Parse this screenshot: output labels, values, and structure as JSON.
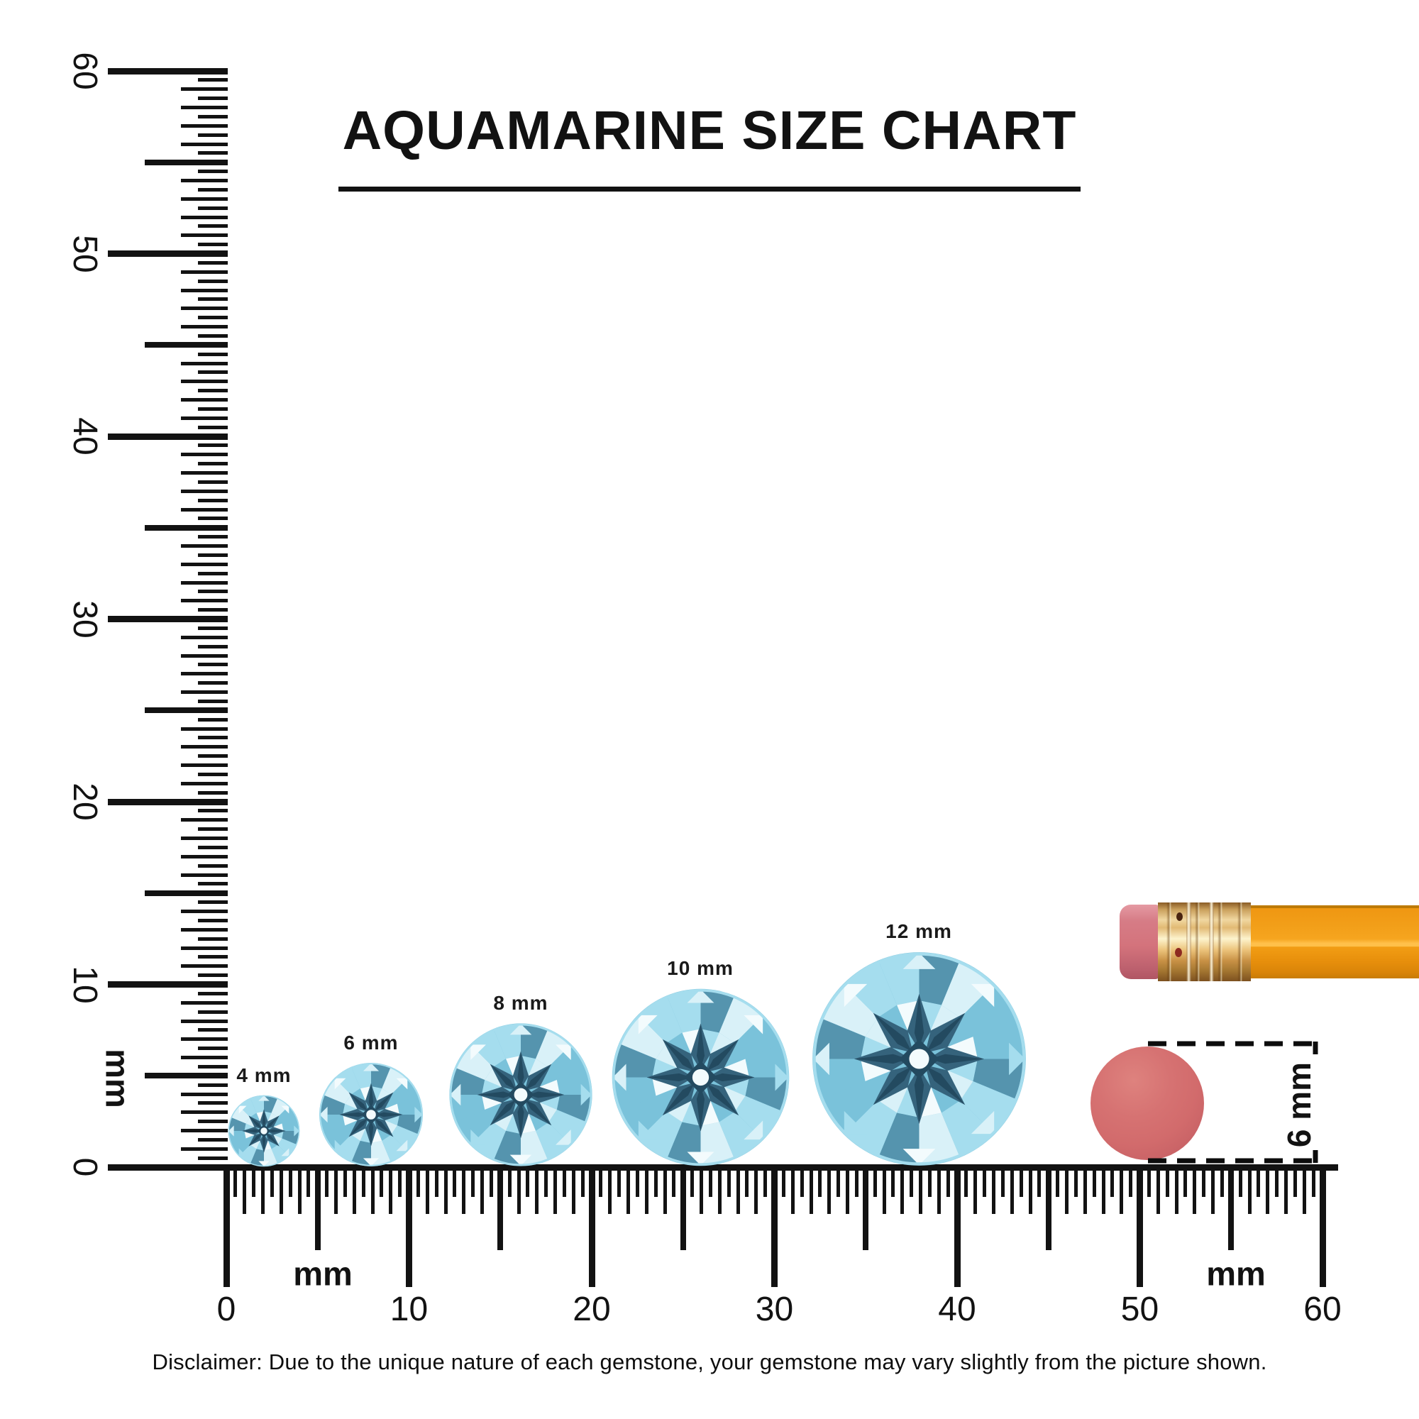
{
  "title": "AQUAMARINE SIZE CHART",
  "rulers": {
    "unit_label": "mm",
    "vertical": {
      "labels": [
        "0",
        "10",
        "20",
        "30",
        "40",
        "50",
        "60"
      ]
    },
    "horizontal": {
      "labels": [
        "0",
        "10",
        "20",
        "30",
        "40",
        "50",
        "60"
      ]
    }
  },
  "gems": [
    {
      "label": "4 mm",
      "size_mm": 4
    },
    {
      "label": "6 mm",
      "size_mm": 6
    },
    {
      "label": "8 mm",
      "size_mm": 8
    },
    {
      "label": "10 mm",
      "size_mm": 10
    },
    {
      "label": "12 mm",
      "size_mm": 12
    }
  ],
  "eraser_measure": {
    "label": "6 mm"
  },
  "disclaimer": "Disclaimer: Due to the unique nature of each gemstone, your gemstone may vary slightly from the picture shown.",
  "colors": {
    "ink": "#121212",
    "gem_palette": {
      "pale": "#d9f1f8",
      "light": "#a5ddee",
      "mid": "#7ac2da",
      "steel": "#5594ae",
      "dark": "#35637c",
      "deep": "#234a60",
      "glint": "#f3fbfd"
    },
    "pencil_body": "#f3a01a",
    "pencil_body_shadow": "#c87c05",
    "pencil_ferrule_highlight": "#fdf3cd",
    "pencil_ferrule_shadow": "#8a5c26",
    "pencil_eraser": "#d4737c",
    "eraser_disc": "#d26b6c"
  }
}
